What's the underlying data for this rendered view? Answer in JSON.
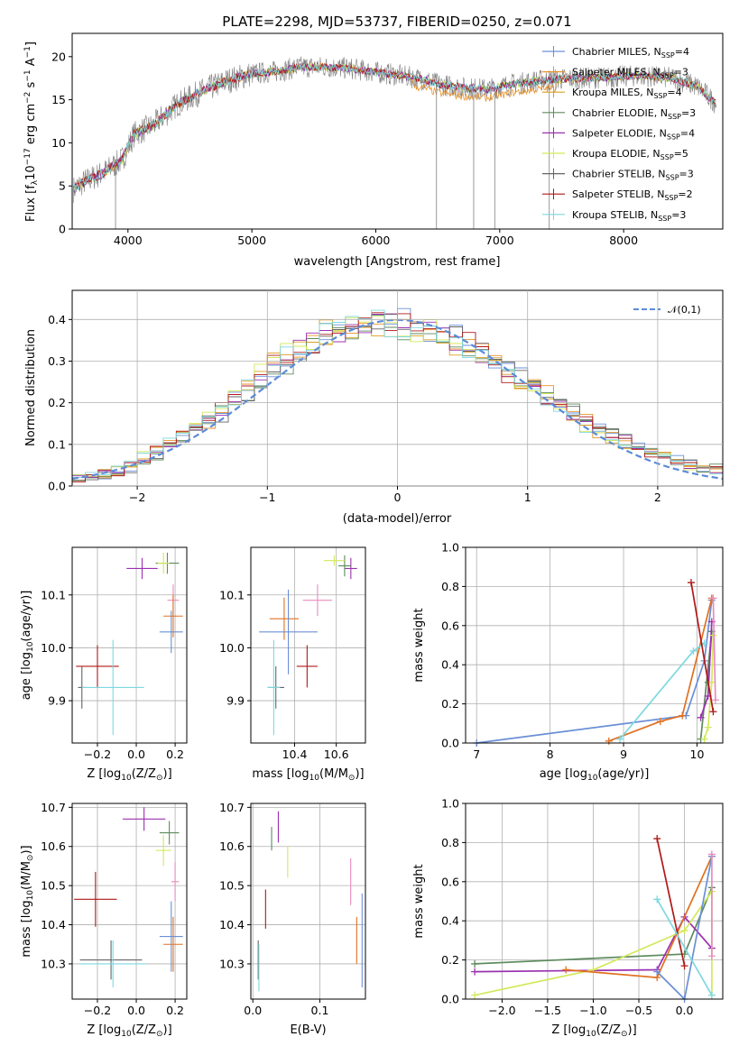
{
  "colors": {
    "chabrier_miles": "#6a8fd6",
    "salpeter_miles": "#e8922a",
    "kroupa_miles": "#d9a020",
    "chabrier_elodie": "#5e8a5e",
    "salpeter_elodie": "#9b30b0",
    "kroupa_elodie": "#d4e85a",
    "chabrier_stelib": "#666666",
    "salpeter_stelib": "#b01818",
    "kroupa_stelib": "#7ed8e0",
    "pink": "#e88cc0",
    "orange": "#e07020",
    "gray_spec": "#808080",
    "normal": "#5b8bd8"
  },
  "chart_data": [
    {
      "type": "line",
      "title": "PLATE=2298, MJD=53737, FIBERID=0250, z=0.071",
      "xlabel": "wavelength [Angstrom, rest frame]",
      "ylabel": "Flux [f$_\\lambda$10$^{-17}$ erg cm$^{-2}$ s$^{-1}$ A$^{-1}$]",
      "ylabel_main": "Flux [f",
      "ylabel_sub": "λ",
      "ylabel_rest": "10",
      "ylabel_sup1": "−17",
      "ylabel_mid1": " erg cm",
      "ylabel_sup2": "−2",
      "ylabel_mid2": " s",
      "ylabel_sup3": "−1",
      "ylabel_mid3": " A",
      "ylabel_sup4": "−1",
      "ylabel_end": "]",
      "xlim": [
        3550,
        8800
      ],
      "ylim": [
        0,
        22.7
      ],
      "xticks": [
        "4000",
        "5000",
        "6000",
        "7000",
        "8000"
      ],
      "xtick_values": [
        4000,
        5000,
        6000,
        7000,
        8000
      ],
      "yticks": [
        "0",
        "5",
        "10",
        "15",
        "20"
      ],
      "ytick_values": [
        0,
        5,
        10,
        15,
        20
      ],
      "legend": [
        {
          "name": "Chabrier MILES, N",
          "sub": "SSP",
          "end": "=4"
        },
        {
          "name": "Salpeter MILES, N",
          "sub": "SSP",
          "end": "=3"
        },
        {
          "name": "Kroupa MILES, N",
          "sub": "SSP",
          "end": "=4"
        },
        {
          "name": "Chabrier ELODIE, N",
          "sub": "SSP",
          "end": "=3"
        },
        {
          "name": "Salpeter ELODIE, N",
          "sub": "SSP",
          "end": "=4"
        },
        {
          "name": "Kroupa ELODIE, N",
          "sub": "SSP",
          "end": "=5"
        },
        {
          "name": "Chabrier STELIB, N",
          "sub": "SSP",
          "end": "=3"
        },
        {
          "name": "Salpeter STELIB, N",
          "sub": "SSP",
          "end": "=2"
        },
        {
          "name": "Kroupa STELIB, N",
          "sub": "SSP",
          "end": "=3"
        }
      ],
      "continuum_knots": [
        [
          3550,
          4.5
        ],
        [
          3650,
          5.5
        ],
        [
          3800,
          6.5
        ],
        [
          3950,
          8
        ],
        [
          4050,
          11
        ],
        [
          4200,
          12
        ],
        [
          4400,
          14.5
        ],
        [
          4600,
          16
        ],
        [
          4800,
          17.2
        ],
        [
          5000,
          18
        ],
        [
          5200,
          18.3
        ],
        [
          5400,
          18.8
        ],
        [
          5600,
          18.8
        ],
        [
          5800,
          18.6
        ],
        [
          6000,
          18.2
        ],
        [
          6200,
          17.8
        ],
        [
          6400,
          17.3
        ],
        [
          6500,
          16.8
        ],
        [
          6700,
          16.4
        ],
        [
          6900,
          16.2
        ],
        [
          7100,
          16.8
        ],
        [
          7300,
          17.2
        ],
        [
          7500,
          17.4
        ],
        [
          7700,
          17.5
        ],
        [
          7900,
          17.6
        ],
        [
          8100,
          17.8
        ],
        [
          8400,
          17.5
        ],
        [
          8600,
          16.5
        ],
        [
          8750,
          14.5
        ]
      ],
      "deep_dips": [
        [
          3900,
          0
        ],
        [
          6490,
          0
        ],
        [
          6790,
          0
        ],
        [
          6960,
          0
        ],
        [
          7400,
          0
        ]
      ]
    },
    {
      "type": "bar",
      "xlabel": "(data-model)/error",
      "ylabel": "Normed distribution",
      "xlim": [
        -2.5,
        2.5
      ],
      "ylim": [
        0,
        0.47
      ],
      "xticks": [
        "−2",
        "−1",
        "0",
        "1",
        "2"
      ],
      "xtick_values": [
        -2,
        -1,
        0,
        1,
        2
      ],
      "yticks": [
        "0.0",
        "0.1",
        "0.2",
        "0.3",
        "0.4"
      ],
      "ytick_values": [
        0,
        0.1,
        0.2,
        0.3,
        0.4
      ],
      "legend_label": "𝒩(0,1)",
      "bin_width": 0.1,
      "hist_profile": [
        0.02,
        0.02,
        0.025,
        0.03,
        0.035,
        0.04,
        0.05,
        0.06,
        0.07,
        0.085,
        0.1,
        0.11,
        0.13,
        0.14,
        0.155,
        0.17,
        0.19,
        0.21,
        0.22,
        0.24,
        0.25,
        0.27,
        0.29,
        0.3,
        0.32,
        0.34,
        0.35,
        0.36,
        0.37,
        0.38,
        0.38,
        0.39,
        0.39,
        0.4,
        0.39,
        0.39,
        0.38,
        0.38,
        0.37,
        0.37,
        0.36,
        0.35,
        0.35,
        0.34,
        0.33,
        0.32,
        0.3,
        0.29,
        0.27,
        0.26,
        0.25,
        0.23,
        0.22,
        0.2,
        0.19,
        0.17,
        0.16,
        0.14,
        0.13,
        0.12,
        0.11,
        0.1,
        0.09,
        0.08,
        0.075,
        0.07,
        0.06,
        0.055,
        0.05,
        0.045,
        0.04,
        0.035,
        0.03
      ]
    },
    {
      "type": "scatter",
      "xlabel": "Z [log",
      "xlabel_sub": "10",
      "xlabel_rest": "(Z/Z",
      "xlabel_sun": "⊙",
      "xlabel_end": ")]",
      "ylabel": "age  [log",
      "ylabel_sub": "10",
      "ylabel_rest": "(age/yr)]",
      "xlim": [
        -0.33,
        0.26
      ],
      "ylim": [
        9.82,
        10.19
      ],
      "xticks": [
        "−0.2",
        "0.0",
        "0.2"
      ],
      "xtick_values": [
        -0.2,
        0.0,
        0.2
      ],
      "yticks": [
        "9.9",
        "10.0",
        "10.1"
      ],
      "ytick_values": [
        9.9,
        10.0,
        10.1
      ],
      "points": [
        {
          "color": "salpeter_stelib",
          "x": -0.2,
          "y": 9.965,
          "xerr": 0.11,
          "yerr": 0.04
        },
        {
          "color": "chabrier_stelib",
          "x": -0.28,
          "y": 9.925,
          "xerr": 0.02,
          "yerr": 0.04
        },
        {
          "color": "kroupa_stelib",
          "x": -0.12,
          "y": 9.925,
          "xerr": 0.16,
          "yerr": 0.09
        },
        {
          "color": "salpeter_elodie",
          "x": 0.03,
          "y": 10.15,
          "xerr": 0.08,
          "yerr": 0.02
        },
        {
          "color": "chabrier_elodie",
          "x": 0.16,
          "y": 10.16,
          "xerr": 0.06,
          "yerr": 0.02
        },
        {
          "color": "kroupa_elodie",
          "x": 0.14,
          "y": 10.16,
          "xerr": 0.03,
          "yerr": 0.02
        },
        {
          "color": "pink",
          "x": 0.19,
          "y": 10.09,
          "xerr": 0.03,
          "yerr": 0.03
        },
        {
          "color": "orange",
          "x": 0.19,
          "y": 10.06,
          "xerr": 0.05,
          "yerr": 0.04
        },
        {
          "color": "chabrier_miles",
          "x": 0.18,
          "y": 10.03,
          "xerr": 0.06,
          "yerr": 0.04
        }
      ]
    },
    {
      "type": "scatter",
      "xlabel": "mass [log",
      "xlabel_sub": "10",
      "xlabel_rest": "(M/M",
      "xlabel_sun": "⊙",
      "xlabel_end": ")]",
      "ylabel": "",
      "xlim": [
        10.19,
        10.74
      ],
      "ylim": [
        9.82,
        10.19
      ],
      "xticks": [
        "10.4",
        "10.6"
      ],
      "xtick_values": [
        10.4,
        10.6
      ],
      "yticks": [
        "9.9",
        "10.0",
        "10.1"
      ],
      "ytick_values": [
        9.9,
        10.0,
        10.1
      ],
      "points": [
        {
          "color": "salpeter_stelib",
          "x": 10.46,
          "y": 9.965,
          "xerr": 0.05,
          "yerr": 0.04
        },
        {
          "color": "chabrier_stelib",
          "x": 10.31,
          "y": 9.925,
          "xerr": 0.04,
          "yerr": 0.04
        },
        {
          "color": "kroupa_stelib",
          "x": 10.3,
          "y": 9.925,
          "xerr": 0.03,
          "yerr": 0.09
        },
        {
          "color": "salpeter_elodie",
          "x": 10.67,
          "y": 10.15,
          "xerr": 0.03,
          "yerr": 0.02
        },
        {
          "color": "chabrier_elodie",
          "x": 10.64,
          "y": 10.155,
          "xerr": 0.03,
          "yerr": 0.02
        },
        {
          "color": "kroupa_elodie",
          "x": 10.59,
          "y": 10.165,
          "xerr": 0.05,
          "yerr": 0.01
        },
        {
          "color": "pink",
          "x": 10.51,
          "y": 10.09,
          "xerr": 0.07,
          "yerr": 0.03
        },
        {
          "color": "orange",
          "x": 10.35,
          "y": 10.055,
          "xerr": 0.07,
          "yerr": 0.04
        },
        {
          "color": "chabrier_miles",
          "x": 10.37,
          "y": 10.03,
          "xerr": 0.14,
          "yerr": 0.08
        }
      ]
    },
    {
      "type": "line",
      "xlabel": "age  [log",
      "xlabel_sub": "10",
      "xlabel_rest": "(age/yr)]",
      "ylabel": "mass weight",
      "xlim": [
        6.85,
        10.35
      ],
      "ylim": [
        0,
        1
      ],
      "xticks": [
        "7",
        "8",
        "9",
        "10"
      ],
      "xtick_values": [
        7,
        8,
        9,
        10
      ],
      "yticks": [
        "0.0",
        "0.2",
        "0.4",
        "0.6",
        "0.8",
        "1.0"
      ],
      "ytick_values": [
        0,
        0.2,
        0.4,
        0.6,
        0.8,
        1.0
      ],
      "series": [
        {
          "color": "chabrier_miles",
          "x": [
            7.0,
            9.85,
            10.1,
            10.2
          ],
          "y": [
            0.0,
            0.14,
            0.42,
            0.73
          ]
        },
        {
          "color": "orange",
          "x": [
            8.8,
            9.5,
            9.8,
            10.2
          ],
          "y": [
            0.01,
            0.11,
            0.14,
            0.74
          ]
        },
        {
          "color": "kroupa_stelib",
          "x": [
            8.95,
            9.95,
            10.1
          ],
          "y": [
            0.02,
            0.47,
            0.51
          ]
        },
        {
          "color": "chabrier_elodie",
          "x": [
            10.05,
            10.2,
            10.15
          ],
          "y": [
            0.02,
            0.57,
            0.31
          ]
        },
        {
          "color": "salpeter_elodie",
          "x": [
            10.05,
            10.15,
            10.2
          ],
          "y": [
            0.13,
            0.24,
            0.62
          ]
        },
        {
          "color": "kroupa_elodie",
          "x": [
            10.1,
            10.15,
            10.2,
            10.22
          ],
          "y": [
            0.02,
            0.08,
            0.31,
            0.55
          ]
        },
        {
          "color": "salpeter_stelib",
          "x": [
            9.92,
            10.22
          ],
          "y": [
            0.82,
            0.16
          ]
        },
        {
          "color": "pink",
          "x": [
            10.22,
            10.25
          ],
          "y": [
            0.74,
            0.22
          ]
        }
      ]
    },
    {
      "type": "scatter",
      "xlabel": "Z [log",
      "xlabel_sub": "10",
      "xlabel_rest": "(Z/Z",
      "xlabel_sun": "⊙",
      "xlabel_end": ")]",
      "ylabel": "mass [log",
      "ylabel_sub": "10",
      "ylabel_rest": "(M/M",
      "ylabel_sun": "⊙",
      "ylabel_end": ")]",
      "xlim": [
        -0.33,
        0.26
      ],
      "ylim": [
        10.21,
        10.71
      ],
      "xticks": [
        "−0.2",
        "0.0",
        "0.2"
      ],
      "xtick_values": [
        -0.2,
        0.0,
        0.2
      ],
      "yticks": [
        "10.3",
        "10.4",
        "10.5",
        "10.6",
        "10.7"
      ],
      "ytick_values": [
        10.3,
        10.4,
        10.5,
        10.6,
        10.7
      ],
      "points": [
        {
          "color": "salpeter_stelib",
          "x": -0.21,
          "y": 10.465,
          "xerr": 0.11,
          "yerr": 0.07
        },
        {
          "color": "chabrier_stelib",
          "x": -0.13,
          "y": 10.31,
          "xerr": 0.16,
          "yerr": 0.05
        },
        {
          "color": "kroupa_stelib",
          "x": -0.12,
          "y": 10.3,
          "xerr": 0.17,
          "yerr": 0.06
        },
        {
          "color": "salpeter_elodie",
          "x": 0.04,
          "y": 10.67,
          "xerr": 0.11,
          "yerr": 0.03
        },
        {
          "color": "chabrier_elodie",
          "x": 0.17,
          "y": 10.635,
          "xerr": 0.05,
          "yerr": 0.03
        },
        {
          "color": "kroupa_elodie",
          "x": 0.14,
          "y": 10.59,
          "xerr": 0.04,
          "yerr": 0.04
        },
        {
          "color": "pink",
          "x": 0.2,
          "y": 10.51,
          "xerr": 0.02,
          "yerr": 0.05
        },
        {
          "color": "orange",
          "x": 0.19,
          "y": 10.35,
          "xerr": 0.05,
          "yerr": 0.07
        },
        {
          "color": "chabrier_miles",
          "x": 0.18,
          "y": 10.37,
          "xerr": 0.06,
          "yerr": 0.09
        }
      ]
    },
    {
      "type": "scatter",
      "xlabel": "E(B-V)",
      "ylabel": "",
      "xlim": [
        -0.003,
        0.168
      ],
      "ylim": [
        10.21,
        10.71
      ],
      "xticks": [
        "0.0",
        "0.1"
      ],
      "xtick_values": [
        0.0,
        0.1
      ],
      "yticks": [
        "10.3",
        "10.4",
        "10.5",
        "10.6",
        "10.7"
      ],
      "ytick_values": [
        10.3,
        10.4,
        10.5,
        10.6,
        10.7
      ],
      "points": [
        {
          "color": "chabrier_stelib",
          "x": 0.008,
          "y": 10.31,
          "xerr": 0.0,
          "yerr": 0.05
        },
        {
          "color": "kroupa_stelib",
          "x": 0.009,
          "y": 10.29,
          "xerr": 0.0,
          "yerr": 0.06
        },
        {
          "color": "salpeter_stelib",
          "x": 0.019,
          "y": 10.44,
          "xerr": 0.0,
          "yerr": 0.05
        },
        {
          "color": "chabrier_elodie",
          "x": 0.028,
          "y": 10.62,
          "xerr": 0.0,
          "yerr": 0.03
        },
        {
          "color": "salpeter_elodie",
          "x": 0.038,
          "y": 10.65,
          "xerr": 0.0,
          "yerr": 0.04
        },
        {
          "color": "kroupa_elodie",
          "x": 0.052,
          "y": 10.56,
          "xerr": 0.0,
          "yerr": 0.04
        },
        {
          "color": "pink",
          "x": 0.146,
          "y": 10.51,
          "xerr": 0.0,
          "yerr": 0.06
        },
        {
          "color": "orange",
          "x": 0.155,
          "y": 10.36,
          "xerr": 0.0,
          "yerr": 0.06
        },
        {
          "color": "chabrier_miles",
          "x": 0.163,
          "y": 10.36,
          "xerr": 0.0,
          "yerr": 0.12
        }
      ]
    },
    {
      "type": "line",
      "xlabel": "Z [log",
      "xlabel_sub": "10",
      "xlabel_rest": "(Z/Z",
      "xlabel_sun": "⊙",
      "xlabel_end": ")]",
      "ylabel": "mass weight",
      "xlim": [
        -2.4,
        0.42
      ],
      "ylim": [
        0,
        1
      ],
      "xticks": [
        "−2.0",
        "−1.5",
        "−1.0",
        "−0.5",
        "0.0"
      ],
      "xtick_values": [
        -2.0,
        -1.5,
        -1.0,
        -0.5,
        0.0
      ],
      "yticks": [
        "0.0",
        "0.2",
        "0.4",
        "0.6",
        "0.8",
        "1.0"
      ],
      "ytick_values": [
        0,
        0.2,
        0.4,
        0.6,
        0.8,
        1.0
      ],
      "series": [
        {
          "color": "chabrier_elodie",
          "x": [
            -2.3,
            0.0,
            0.3
          ],
          "y": [
            0.18,
            0.23,
            0.57
          ]
        },
        {
          "color": "salpeter_elodie",
          "x": [
            -2.3,
            -0.3,
            0.0,
            0.3
          ],
          "y": [
            0.14,
            0.15,
            0.42,
            0.26
          ]
        },
        {
          "color": "kroupa_elodie",
          "x": [
            -2.3,
            -1.0,
            0.0,
            0.3,
            0.3
          ],
          "y": [
            0.02,
            0.15,
            0.35,
            0.55,
            0.02
          ]
        },
        {
          "color": "orange",
          "x": [
            -1.3,
            -0.3,
            0.3
          ],
          "y": [
            0.15,
            0.11,
            0.73
          ]
        },
        {
          "color": "chabrier_miles",
          "x": [
            -0.3,
            0.0,
            0.3
          ],
          "y": [
            0.14,
            0.0,
            0.73
          ]
        },
        {
          "color": "salpeter_stelib",
          "x": [
            -0.3,
            0.0
          ],
          "y": [
            0.82,
            0.17
          ]
        },
        {
          "color": "kroupa_stelib",
          "x": [
            -0.3,
            0.3
          ],
          "y": [
            0.51,
            0.02
          ]
        },
        {
          "color": "pink",
          "x": [
            0.3,
            0.3
          ],
          "y": [
            0.74,
            0.22
          ]
        }
      ]
    }
  ]
}
